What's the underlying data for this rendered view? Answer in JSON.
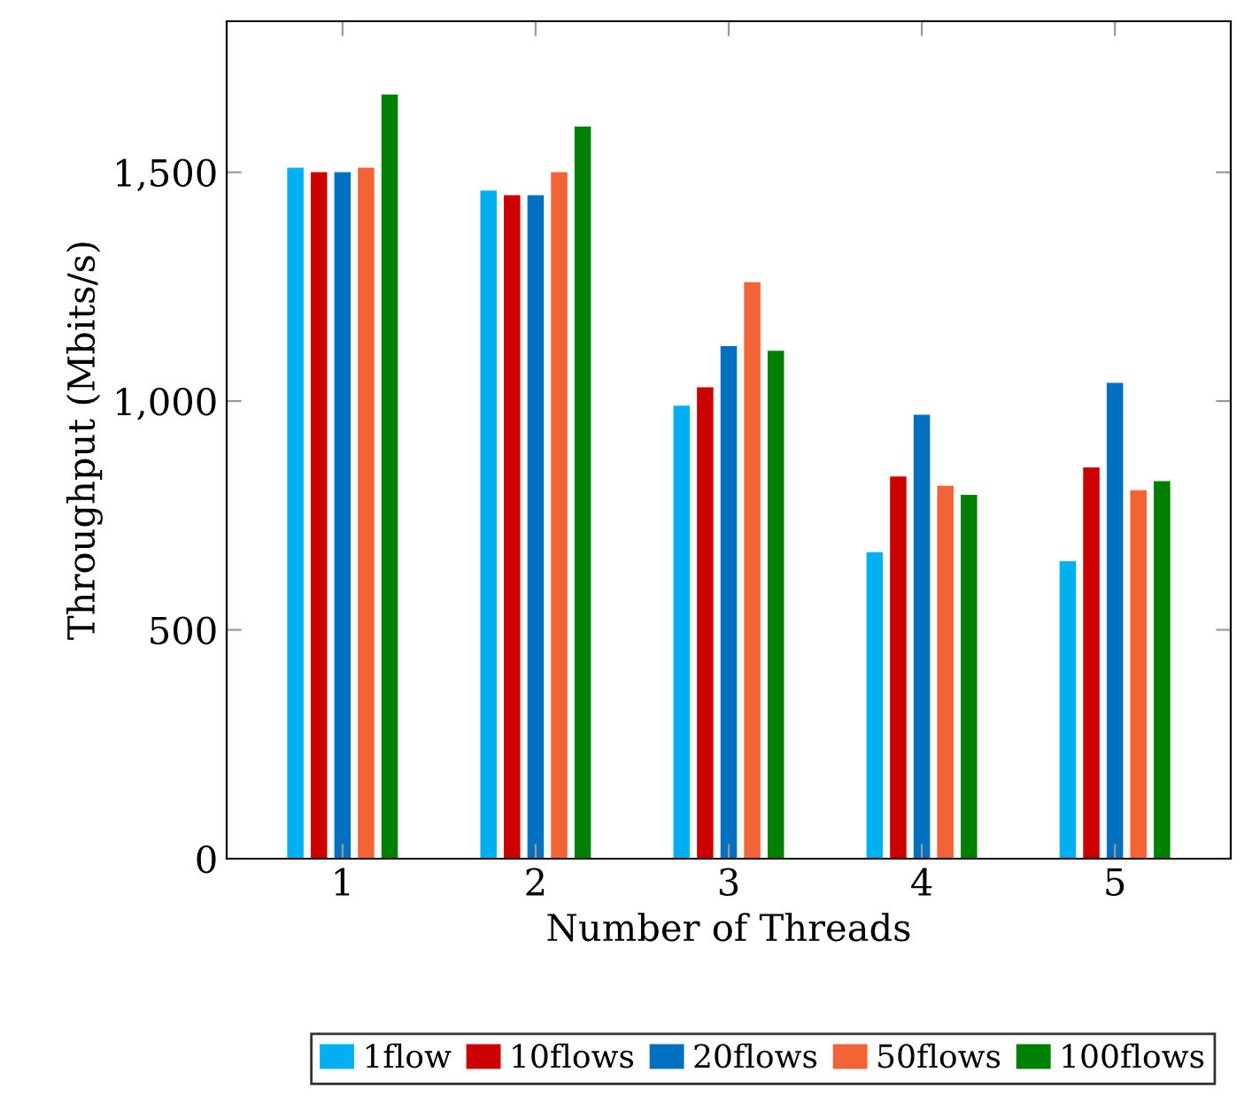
{
  "chart_data": {
    "type": "bar",
    "xlabel": "Number of Threads",
    "ylabel": "Throughput (Mbits/s)",
    "categories": [
      "1",
      "2",
      "3",
      "4",
      "5"
    ],
    "series": [
      {
        "name": "1flow",
        "color": "#00b0f0",
        "values": [
          1510,
          1460,
          990,
          670,
          650
        ]
      },
      {
        "name": "10flows",
        "color": "#cc0000",
        "values": [
          1500,
          1450,
          1030,
          835,
          855
        ]
      },
      {
        "name": "20flows",
        "color": "#0070c0",
        "values": [
          1500,
          1450,
          1120,
          970,
          1040
        ]
      },
      {
        "name": "50flows",
        "color": "#f26336",
        "values": [
          1510,
          1500,
          1260,
          815,
          805
        ]
      },
      {
        "name": "100flows",
        "color": "#008000",
        "values": [
          1670,
          1600,
          1110,
          795,
          825
        ]
      }
    ],
    "ylim": [
      0,
      1830
    ],
    "yticks": [
      0,
      {
        "value": 500,
        "label": "500"
      },
      {
        "value": 1000,
        "label": "1,000"
      },
      {
        "value": 1500,
        "label": "1,500"
      }
    ],
    "grid": false,
    "legend": "bottom"
  }
}
